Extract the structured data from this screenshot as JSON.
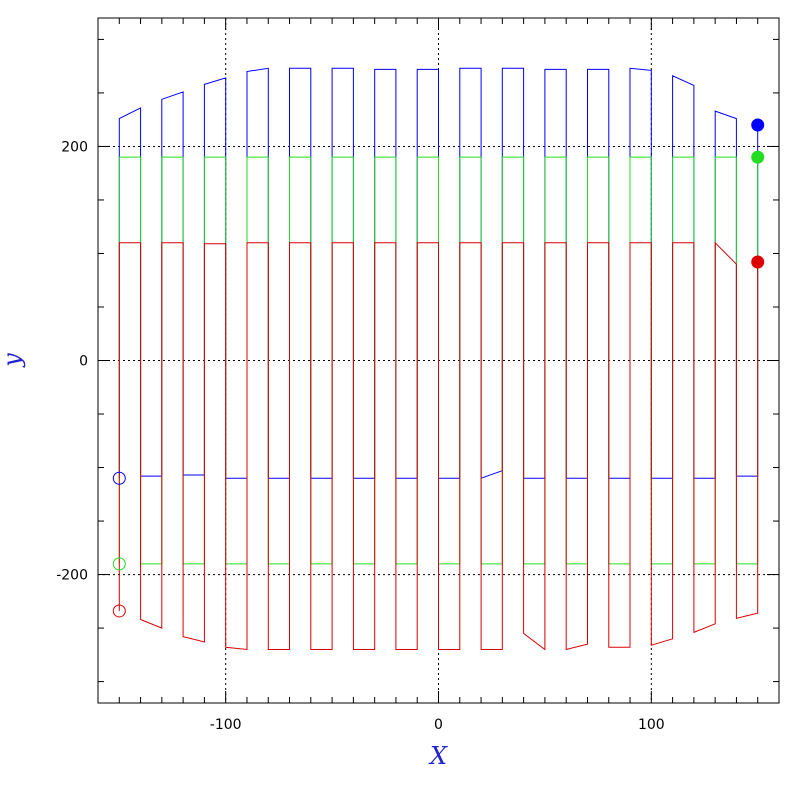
{
  "chart_data": {
    "type": "line",
    "title": "",
    "xlabel": "X",
    "ylabel": "y",
    "label_color": "#2222cc",
    "xlim": [
      -160,
      160
    ],
    "ylim": [
      -320,
      320
    ],
    "xticks": [
      -100,
      0,
      100
    ],
    "yticks": [
      -200,
      0,
      200
    ],
    "x_minor_step": 10,
    "y_minor_step": 50,
    "reference_lines": {
      "x": [
        -100,
        0,
        100
      ],
      "y": [
        -200,
        0,
        200
      ]
    },
    "grid": false,
    "legend": null,
    "series": [
      {
        "color": "#0000ff",
        "x": [
          -150,
          -150,
          -140,
          -140,
          -130,
          -130,
          -120,
          -120,
          -110,
          -110,
          -100,
          -100,
          -90,
          -90,
          -80,
          -80,
          -70,
          -70,
          -60,
          -60,
          -50,
          -50,
          -40,
          -40,
          -30,
          -30,
          -20,
          -20,
          -10,
          -10,
          0,
          0,
          10,
          10,
          20,
          20,
          30,
          30,
          40,
          40,
          50,
          50,
          60,
          60,
          70,
          70,
          80,
          80,
          90,
          90,
          100,
          100,
          110,
          110,
          120,
          120,
          130,
          130,
          140,
          140,
          150,
          150
        ],
        "y": [
          -110,
          226,
          236,
          -108,
          -108,
          244,
          251,
          -107,
          -107,
          258,
          264,
          -110,
          -110,
          270,
          273,
          -110,
          -110,
          273,
          273,
          -110,
          -110,
          273,
          273,
          -110,
          -110,
          272,
          272,
          -110,
          -110,
          272,
          272,
          -110,
          -110,
          273,
          273,
          -110,
          -103,
          273,
          273,
          -110,
          -110,
          272,
          272,
          -110,
          -110,
          272,
          272,
          -110,
          -110,
          273,
          271,
          -110,
          -110,
          266,
          257,
          -110,
          -110,
          233,
          226,
          -108,
          -108,
          220
        ]
      },
      {
        "color": "#22dd22",
        "x": [
          -150,
          -150,
          -140,
          -140,
          -130,
          -130,
          -120,
          -120,
          -110,
          -110,
          -100,
          -100,
          -90,
          -90,
          -80,
          -80,
          -70,
          -70,
          -60,
          -60,
          -50,
          -50,
          -40,
          -40,
          -30,
          -30,
          -20,
          -20,
          -10,
          -10,
          0,
          0,
          10,
          10,
          20,
          20,
          30,
          30,
          40,
          40,
          50,
          50,
          60,
          60,
          70,
          70,
          80,
          80,
          90,
          90,
          100,
          100,
          110,
          110,
          120,
          120,
          130,
          130,
          140,
          140,
          150,
          150
        ],
        "y": [
          -190,
          190,
          190,
          -190,
          -190,
          190,
          190,
          -190,
          -190,
          190,
          190,
          -190,
          -190,
          190,
          190,
          -190,
          -190,
          190,
          190,
          -190,
          -190,
          190,
          190,
          -190,
          -190,
          190,
          190,
          -190,
          -190,
          190,
          190,
          -190,
          -190,
          190,
          190,
          -190,
          -190,
          190,
          190,
          -190,
          -190,
          190,
          190,
          -190,
          -190,
          190,
          190,
          -190,
          -190,
          190,
          190,
          -190,
          -190,
          190,
          190,
          -190,
          -190,
          190,
          190,
          -190,
          -190,
          190
        ]
      },
      {
        "color": "#dd0000",
        "x": [
          -150,
          -150,
          -140,
          -140,
          -130,
          -130,
          -120,
          -120,
          -110,
          -110,
          -100,
          -100,
          -90,
          -90,
          -80,
          -80,
          -70,
          -70,
          -60,
          -60,
          -50,
          -50,
          -40,
          -40,
          -30,
          -30,
          -20,
          -20,
          -10,
          -10,
          0,
          0,
          10,
          10,
          20,
          20,
          30,
          30,
          40,
          40,
          50,
          50,
          60,
          60,
          70,
          70,
          80,
          80,
          90,
          90,
          100,
          100,
          110,
          110,
          120,
          120,
          130,
          130,
          140,
          140,
          150,
          150
        ],
        "y": [
          -234,
          110,
          110,
          -242,
          -250,
          110,
          110,
          -258,
          -263,
          109,
          109,
          -268,
          -270,
          110,
          110,
          -270,
          -270,
          110,
          110,
          -270,
          -270,
          110,
          110,
          -270,
          -270,
          110,
          110,
          -270,
          -270,
          110,
          110,
          -270,
          -270,
          110,
          110,
          -270,
          -270,
          110,
          110,
          -255,
          -270,
          110,
          110,
          -270,
          -265,
          110,
          110,
          -268,
          -268,
          110,
          110,
          -266,
          -260,
          110,
          110,
          -254,
          -246,
          110,
          90,
          -241,
          -236,
          92
        ]
      }
    ],
    "markers": [
      {
        "x": -150,
        "y": -110,
        "color": "#0000ff",
        "filled": false
      },
      {
        "x": -150,
        "y": -190,
        "color": "#22dd22",
        "filled": false
      },
      {
        "x": -150,
        "y": -234,
        "color": "#dd0000",
        "filled": false
      },
      {
        "x": 150,
        "y": 220,
        "color": "#0000ff",
        "filled": true
      },
      {
        "x": 150,
        "y": 190,
        "color": "#22dd22",
        "filled": true
      },
      {
        "x": 150,
        "y": 92,
        "color": "#dd0000",
        "filled": true
      }
    ]
  }
}
